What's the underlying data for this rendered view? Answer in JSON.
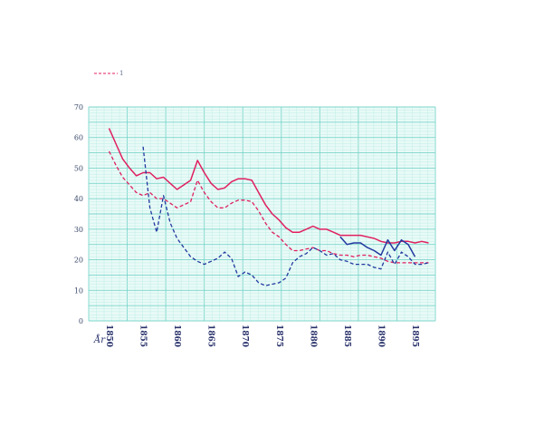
{
  "chart_data": {
    "type": "line",
    "title": "",
    "xlabel": "År",
    "ylabel": "",
    "xlim": [
      1847,
      1898
    ],
    "ylim": [
      0,
      70
    ],
    "y_ticks": [
      "0",
      "10",
      "20",
      "30",
      "40",
      "50",
      "60",
      "70"
    ],
    "x_ticks": [
      {
        "value": 1850,
        "label": "1850"
      },
      {
        "value": 1855,
        "label": "1855"
      },
      {
        "value": 1860,
        "label": "1860"
      },
      {
        "value": 1865,
        "label": "1865"
      },
      {
        "value": 1870,
        "label": "1870"
      },
      {
        "value": 1875,
        "label": "1875"
      },
      {
        "value": 1880,
        "label": "1880"
      },
      {
        "value": 1885,
        "label": "1885"
      },
      {
        "value": 1890,
        "label": "1890"
      },
      {
        "value": 1895,
        "label": "1895"
      }
    ],
    "legend_text": "1",
    "grid": true,
    "colors": {
      "grid_minor": "#bfeee6",
      "grid_major": "#7cd6cb",
      "plot_bg": "#e9faf7",
      "red": "#e01f5f",
      "blue": "#2238a0"
    },
    "series": [
      {
        "color": "#e01f5f",
        "dash": "solid",
        "points": [
          [
            1850,
            63
          ],
          [
            1851,
            58
          ],
          [
            1852,
            53
          ],
          [
            1853,
            50
          ],
          [
            1854,
            47.5
          ],
          [
            1855,
            48.5
          ],
          [
            1856,
            48.5
          ],
          [
            1857,
            46.5
          ],
          [
            1858,
            47
          ],
          [
            1859,
            45
          ],
          [
            1860,
            43
          ],
          [
            1861,
            44.5
          ],
          [
            1862,
            46
          ],
          [
            1863,
            52.5
          ],
          [
            1864,
            48.5
          ],
          [
            1865,
            45
          ],
          [
            1866,
            43
          ],
          [
            1867,
            43.5
          ],
          [
            1868,
            45.5
          ],
          [
            1869,
            46.5
          ],
          [
            1870,
            46.5
          ],
          [
            1871,
            46
          ],
          [
            1872,
            42
          ],
          [
            1873,
            38
          ],
          [
            1874,
            35
          ],
          [
            1875,
            33
          ],
          [
            1876,
            30.5
          ],
          [
            1877,
            29
          ],
          [
            1878,
            29
          ],
          [
            1879,
            30
          ],
          [
            1880,
            31
          ],
          [
            1881,
            30
          ],
          [
            1882,
            30
          ],
          [
            1883,
            29
          ],
          [
            1884,
            28
          ],
          [
            1885,
            28
          ],
          [
            1886,
            28
          ],
          [
            1887,
            28
          ],
          [
            1888,
            27.5
          ],
          [
            1889,
            27
          ],
          [
            1890,
            26
          ],
          [
            1891,
            25.5
          ],
          [
            1892,
            25.5
          ],
          [
            1893,
            26
          ],
          [
            1894,
            26
          ],
          [
            1895,
            25.5
          ],
          [
            1896,
            26
          ],
          [
            1897,
            25.5
          ]
        ]
      },
      {
        "color": "#e01f5f",
        "dash": "dashed",
        "points": [
          [
            1850,
            55.5
          ],
          [
            1851,
            51
          ],
          [
            1852,
            47
          ],
          [
            1853,
            44.5
          ],
          [
            1854,
            42
          ],
          [
            1855,
            41
          ],
          [
            1856,
            42
          ],
          [
            1857,
            40
          ],
          [
            1858,
            40
          ],
          [
            1859,
            38.5
          ],
          [
            1860,
            37
          ],
          [
            1861,
            38
          ],
          [
            1862,
            39
          ],
          [
            1863,
            46
          ],
          [
            1864,
            42
          ],
          [
            1865,
            39
          ],
          [
            1866,
            37
          ],
          [
            1867,
            37
          ],
          [
            1868,
            38.5
          ],
          [
            1869,
            39.5
          ],
          [
            1870,
            39.5
          ],
          [
            1871,
            39
          ],
          [
            1872,
            36
          ],
          [
            1873,
            32
          ],
          [
            1874,
            29
          ],
          [
            1875,
            27.5
          ],
          [
            1876,
            25
          ],
          [
            1877,
            23
          ],
          [
            1878,
            23
          ],
          [
            1879,
            23.5
          ],
          [
            1880,
            24
          ],
          [
            1881,
            23
          ],
          [
            1882,
            23
          ],
          [
            1883,
            22
          ],
          [
            1884,
            21.5
          ],
          [
            1885,
            21.5
          ],
          [
            1886,
            21
          ],
          [
            1887,
            21.5
          ],
          [
            1888,
            21.5
          ],
          [
            1889,
            21
          ],
          [
            1890,
            20.5
          ],
          [
            1891,
            19.5
          ],
          [
            1892,
            19
          ],
          [
            1893,
            19
          ],
          [
            1894,
            19
          ],
          [
            1895,
            19
          ],
          [
            1896,
            19
          ],
          [
            1897,
            19
          ]
        ]
      },
      {
        "color": "#2238a0",
        "dash": "dashed",
        "points": [
          [
            1855,
            57
          ],
          [
            1856,
            37
          ],
          [
            1857,
            29
          ],
          [
            1858,
            41
          ],
          [
            1859,
            32
          ],
          [
            1860,
            27
          ],
          [
            1861,
            24
          ],
          [
            1862,
            21
          ],
          [
            1863,
            19.5
          ],
          [
            1864,
            18.5
          ],
          [
            1865,
            19.5
          ],
          [
            1866,
            20.5
          ],
          [
            1867,
            22.5
          ],
          [
            1868,
            20.5
          ],
          [
            1869,
            14.5
          ],
          [
            1870,
            16
          ],
          [
            1871,
            15
          ],
          [
            1872,
            12.5
          ],
          [
            1873,
            11.5
          ],
          [
            1874,
            12
          ],
          [
            1875,
            12.5
          ],
          [
            1876,
            14
          ],
          [
            1877,
            19
          ],
          [
            1878,
            21
          ],
          [
            1879,
            22
          ],
          [
            1880,
            24
          ],
          [
            1881,
            23
          ],
          [
            1882,
            21.5
          ],
          [
            1883,
            22
          ],
          [
            1884,
            20
          ],
          [
            1885,
            19.5
          ],
          [
            1886,
            18.5
          ],
          [
            1887,
            18.5
          ],
          [
            1888,
            18.5
          ],
          [
            1889,
            17.5
          ],
          [
            1890,
            17
          ],
          [
            1891,
            22.5
          ],
          [
            1892,
            18.5
          ],
          [
            1893,
            22.5
          ],
          [
            1894,
            21
          ],
          [
            1895,
            18.5
          ],
          [
            1896,
            18.5
          ],
          [
            1897,
            19
          ]
        ]
      },
      {
        "color": "#2238a0",
        "dash": "solid",
        "points": [
          [
            1884,
            27.5
          ],
          [
            1885,
            25
          ],
          [
            1886,
            25.5
          ],
          [
            1887,
            25.5
          ],
          [
            1888,
            24
          ],
          [
            1889,
            23
          ],
          [
            1890,
            21.5
          ],
          [
            1891,
            26.5
          ],
          [
            1892,
            23
          ],
          [
            1893,
            26.5
          ],
          [
            1894,
            25
          ],
          [
            1895,
            21
          ]
        ]
      }
    ]
  }
}
